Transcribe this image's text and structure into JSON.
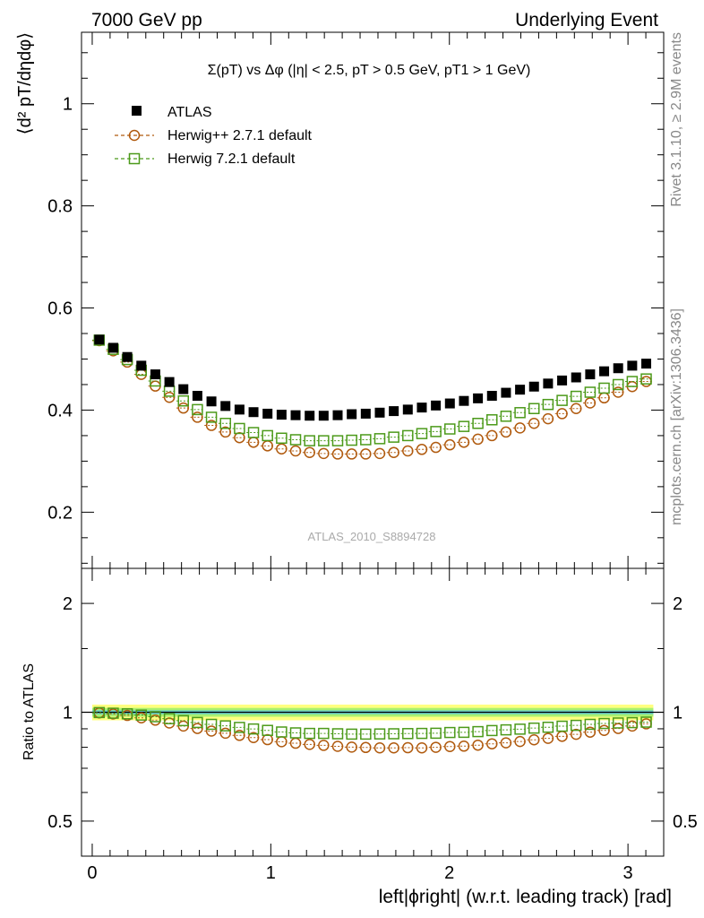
{
  "header": {
    "left": "7000 GeV pp",
    "right": "Underlying Event"
  },
  "side_labels": {
    "rivet": "Rivet 3.1.10, ≥ 2.9M events",
    "mcplots": "mcplots.cern.ch [arXiv:1306.3436]"
  },
  "chart_data": [
    {
      "type": "scatter",
      "panel": "main",
      "title": "Σ(pT) vs Δφ (|η| < 2.5, pT > 0.5 GeV, pT1 > 1 GeV)",
      "ylabel": "⟨d² pT/dηdφ⟩",
      "watermark": "ATLAS_2010_S8894728",
      "xlim": [
        -0.06,
        3.2
      ],
      "ylim": [
        0.09,
        1.14
      ],
      "yticks": [
        0.2,
        0.4,
        0.6,
        0.8,
        1
      ],
      "ytick_labels": [
        "0.2",
        "0.4",
        "0.6",
        "0.8",
        "1"
      ],
      "legend_position": "top-left",
      "legend": [
        "ATLAS",
        "Herwig++ 2.7.1 default",
        "Herwig 7.2.1 default"
      ],
      "x": [
        0.0393,
        0.1178,
        0.1963,
        0.2749,
        0.3534,
        0.432,
        0.5105,
        0.589,
        0.6676,
        0.7461,
        0.8247,
        0.9032,
        0.9817,
        1.0603,
        1.1388,
        1.2174,
        1.2959,
        1.3744,
        1.453,
        1.5315,
        1.6101,
        1.6886,
        1.7671,
        1.8457,
        1.9242,
        2.0028,
        2.0813,
        2.1598,
        2.2384,
        2.3169,
        2.3955,
        2.474,
        2.5525,
        2.6311,
        2.7096,
        2.7882,
        2.8667,
        2.9452,
        3.0238,
        3.1023
      ],
      "series": [
        {
          "name": "ATLAS",
          "marker": "filled-square",
          "color": "#000000",
          "values": [
            0.538,
            0.522,
            0.504,
            0.487,
            0.47,
            0.455,
            0.441,
            0.428,
            0.417,
            0.408,
            0.401,
            0.396,
            0.393,
            0.391,
            0.39,
            0.389,
            0.389,
            0.39,
            0.392,
            0.393,
            0.395,
            0.398,
            0.401,
            0.405,
            0.409,
            0.413,
            0.418,
            0.423,
            0.428,
            0.434,
            0.44,
            0.446,
            0.452,
            0.458,
            0.464,
            0.47,
            0.476,
            0.482,
            0.487,
            0.491
          ]
        },
        {
          "name": "Herwig++ 2.7.1 default",
          "marker": "open-circle",
          "color": "#b05a0e",
          "values": [
            0.536,
            0.516,
            0.494,
            0.47,
            0.447,
            0.425,
            0.404,
            0.386,
            0.37,
            0.357,
            0.346,
            0.337,
            0.33,
            0.324,
            0.32,
            0.317,
            0.315,
            0.314,
            0.314,
            0.314,
            0.315,
            0.317,
            0.32,
            0.323,
            0.327,
            0.332,
            0.337,
            0.343,
            0.35,
            0.357,
            0.365,
            0.374,
            0.383,
            0.393,
            0.403,
            0.414,
            0.424,
            0.435,
            0.446,
            0.456
          ]
        },
        {
          "name": "Herwig 7.2.1 default",
          "marker": "open-square",
          "color": "#4c9a1a",
          "values": [
            0.537,
            0.519,
            0.499,
            0.478,
            0.457,
            0.437,
            0.418,
            0.401,
            0.386,
            0.374,
            0.364,
            0.356,
            0.35,
            0.345,
            0.342,
            0.34,
            0.34,
            0.34,
            0.341,
            0.342,
            0.344,
            0.347,
            0.35,
            0.354,
            0.358,
            0.363,
            0.368,
            0.374,
            0.381,
            0.388,
            0.395,
            0.403,
            0.411,
            0.419,
            0.427,
            0.435,
            0.443,
            0.45,
            0.456,
            0.461
          ]
        }
      ]
    },
    {
      "type": "scatter",
      "panel": "ratio",
      "ylabel": "Ratio to ATLAS",
      "xlabel": "left|ϕright| (w.r.t. leading track) [rad]",
      "xlim": [
        -0.06,
        3.2
      ],
      "ylim": [
        0.4,
        2.5
      ],
      "log_y": true,
      "yticks": [
        0.5,
        1,
        2
      ],
      "ytick_labels": [
        "0.5",
        "1",
        "2"
      ],
      "xticks": [
        0,
        1,
        2,
        3
      ],
      "xtick_labels": [
        "0",
        "1",
        "2",
        "3"
      ],
      "band_colors": [
        "#ffff80",
        "#a8f070",
        "#66cccc"
      ],
      "series": [
        {
          "name": "Herwig++ 2.7.1 default",
          "marker": "open-circle",
          "color": "#b05a0e",
          "values": [
            0.996,
            0.989,
            0.98,
            0.965,
            0.951,
            0.934,
            0.916,
            0.902,
            0.887,
            0.875,
            0.863,
            0.851,
            0.84,
            0.829,
            0.821,
            0.815,
            0.81,
            0.805,
            0.801,
            0.799,
            0.797,
            0.797,
            0.798,
            0.797,
            0.8,
            0.804,
            0.806,
            0.811,
            0.818,
            0.823,
            0.83,
            0.839,
            0.847,
            0.858,
            0.869,
            0.881,
            0.891,
            0.902,
            0.916,
            0.929
          ]
        },
        {
          "name": "Herwig 7.2.1 default",
          "marker": "open-square",
          "color": "#4c9a1a",
          "values": [
            0.998,
            0.994,
            0.99,
            0.982,
            0.972,
            0.96,
            0.948,
            0.937,
            0.926,
            0.917,
            0.908,
            0.899,
            0.891,
            0.882,
            0.877,
            0.874,
            0.874,
            0.872,
            0.87,
            0.87,
            0.871,
            0.872,
            0.873,
            0.874,
            0.875,
            0.879,
            0.88,
            0.884,
            0.89,
            0.894,
            0.898,
            0.904,
            0.909,
            0.915,
            0.92,
            0.926,
            0.931,
            0.934,
            0.936,
            0.939
          ]
        }
      ]
    }
  ]
}
